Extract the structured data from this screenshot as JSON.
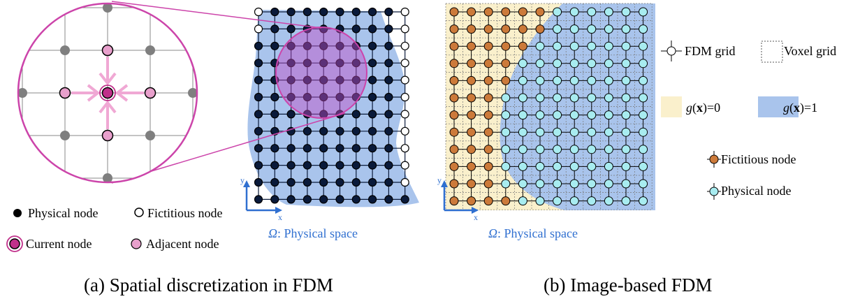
{
  "panel_a": {
    "caption": "(a) Spatial discretization in FDM",
    "space_label_symbol": "Ω",
    "space_label_text": ": Physical space",
    "axis_x": "x",
    "axis_y": "y",
    "legend": {
      "physical": "Physical node",
      "fictitious": "Fictitious node",
      "current": "Current node",
      "adjacent": "Adjacent node"
    }
  },
  "panel_b": {
    "caption": "(b) Image-based FDM",
    "space_label_symbol": "Ω",
    "space_label_text": ": Physical space",
    "axis_x": "x",
    "axis_y": "y",
    "legend": {
      "fdm_grid": "FDM grid",
      "voxel_grid": "Voxel grid",
      "g0_func": "g",
      "g0_arg": "x",
      "g0_value": "=0",
      "g1_func": "g",
      "g1_arg": "x",
      "g1_value": "=1",
      "fictitious": "Fictitious node",
      "physical": "Physical node"
    }
  },
  "colors": {
    "physical_space": "#a9c4ec",
    "g0_region": "#faf0cc",
    "magnify_circle": "#cc44aa",
    "current_node": "#c0308a",
    "adjacent_node": "#e8a0cc",
    "far_node": "#7f7f7f",
    "physical_node_a": "#0a1a3a",
    "fictitious_node_b": "#cc7a3a",
    "physical_node_b": "#a8ecf0",
    "axis": "#2f6fd0"
  }
}
